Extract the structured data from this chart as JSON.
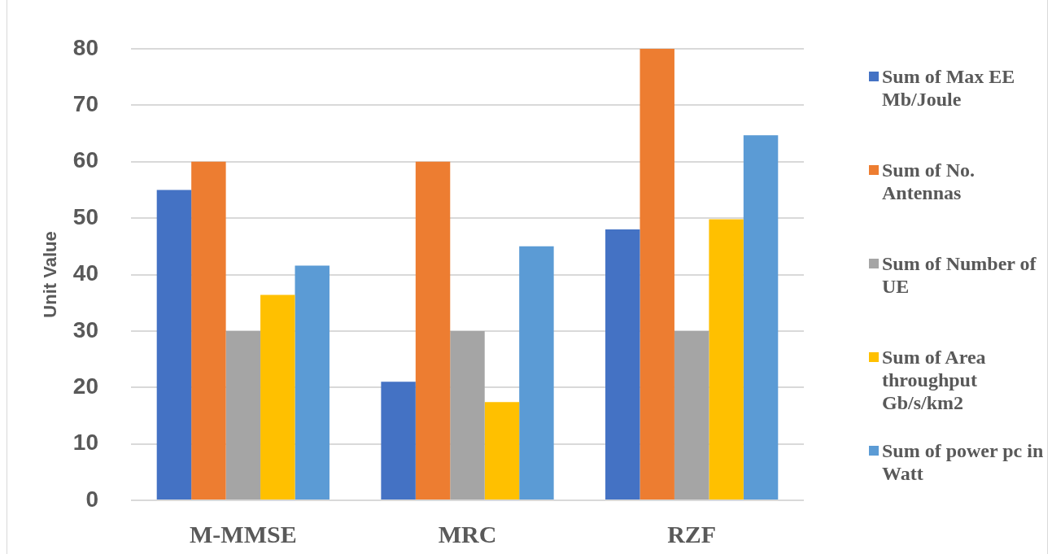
{
  "chart_data": {
    "type": "bar",
    "ylabel": "Unit Value",
    "categories": [
      "M-MMSE",
      "MRC",
      "RZF"
    ],
    "series": [
      {
        "name": "Sum of Max EE Mb/Joule",
        "color": "#4472c4",
        "values": [
          55,
          21,
          48
        ]
      },
      {
        "name": "Sum of No. Antennas",
        "color": "#ed7d31",
        "values": [
          60,
          60,
          80
        ]
      },
      {
        "name": "Sum of Number of UE",
        "color": "#a5a5a5",
        "values": [
          30,
          30,
          30
        ]
      },
      {
        "name": "Sum of Area throughput Gb/s/km2",
        "color": "#ffc000",
        "values": [
          36.4,
          17.4,
          49.8
        ]
      },
      {
        "name": "Sum of power pc in Watt",
        "color": "#5b9bd5",
        "values": [
          41.6,
          45,
          64.7
        ]
      }
    ],
    "ylim": [
      0,
      80
    ],
    "yticks": [
      0,
      10,
      20,
      30,
      40,
      50,
      60,
      70,
      80
    ],
    "grid": "y",
    "legend": "right"
  }
}
